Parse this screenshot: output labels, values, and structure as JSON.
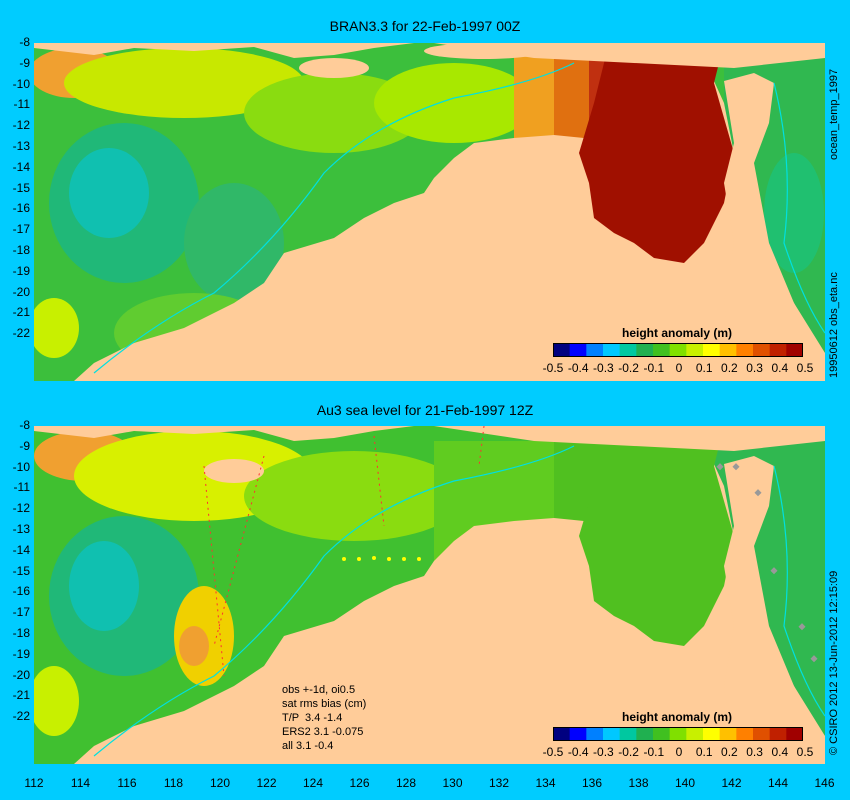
{
  "top_panel": {
    "title": "BRAN3.3 for 22-Feb-1997 00Z",
    "side_label_1": "ocean_temp_1997",
    "side_label_2": "19950612 obs_eta.nc"
  },
  "bottom_panel": {
    "title": "Au3 sea level  for 21-Feb-1997 12Z",
    "side_label": "© CSIRO 2012  13-Jun-2012 12:15:09",
    "notes": [
      "obs +-1d, oi0.5",
      "sat rms bias (cm)",
      "T/P  3.4 -1.4",
      "ERS2 3.1 -0.075",
      "all 3.1 -0.4"
    ]
  },
  "colorbar": {
    "title": "height anomaly  (m)",
    "ticks": [
      "-0.5",
      "-0.4",
      "-0.3",
      "-0.2",
      "-0.1",
      "0",
      "0.1",
      "0.2",
      "0.3",
      "0.4",
      "0.5"
    ],
    "colors": [
      "#000080",
      "#0000ff",
      "#0080ff",
      "#00c8ff",
      "#00c8a0",
      "#20b050",
      "#40c020",
      "#80e000",
      "#c8f000",
      "#ffff00",
      "#ffc000",
      "#ff8000",
      "#e05000",
      "#c02000",
      "#a00000"
    ]
  },
  "axes": {
    "lat_labels": [
      "-8",
      "-9",
      "-10",
      "-11",
      "-12",
      "-13",
      "-14",
      "-15",
      "-16",
      "-17",
      "-18",
      "-19",
      "-20",
      "-21",
      "-22"
    ],
    "lon_labels": [
      "112",
      "114",
      "116",
      "118",
      "120",
      "122",
      "124",
      "126",
      "128",
      "130",
      "132",
      "134",
      "136",
      "138",
      "140",
      "142",
      "144",
      "146"
    ]
  },
  "colors": {
    "background": "#00ccff",
    "land": "#ffcc99",
    "coast_line": "#00e0e0"
  }
}
